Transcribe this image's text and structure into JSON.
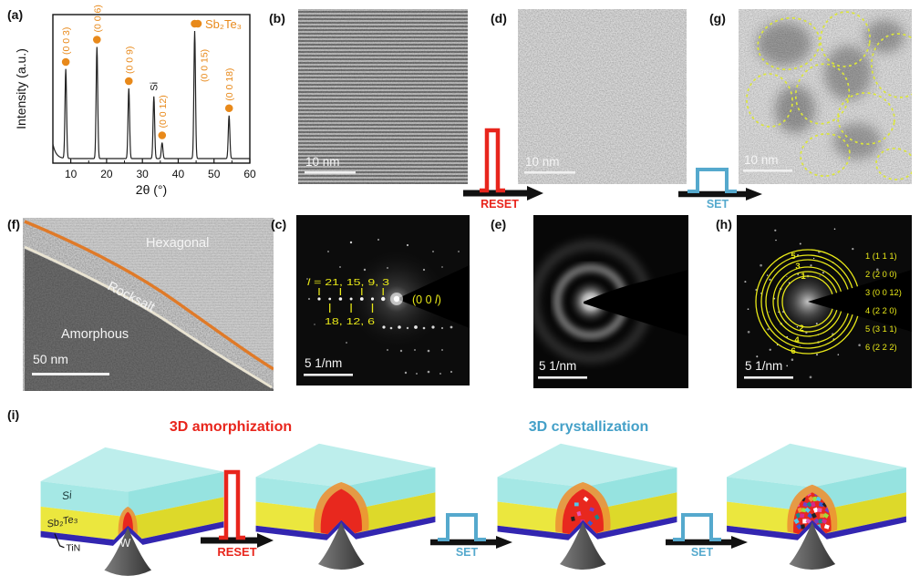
{
  "panels": {
    "a": {
      "label": "(a)"
    },
    "b": {
      "label": "(b)",
      "scale_bar": "10 nm"
    },
    "c": {
      "label": "(c)",
      "scale_bar": "5 1/nm",
      "l_italic": "l",
      "l_values_top": " = 21, 15, 9, 3",
      "l_values_bottom": "18, 12, 6",
      "zone_prefix": "(0 0 ",
      "zone_l": "l",
      "zone_suffix": ")"
    },
    "d": {
      "label": "(d)",
      "scale_bar": "10 nm"
    },
    "e": {
      "label": "(e)",
      "scale_bar": "5 1/nm"
    },
    "f": {
      "label": "(f)",
      "scale_bar": "50 nm",
      "region_hexagonal": "Hexagonal",
      "region_rocksalt": "Rocksalt",
      "region_amorphous": "Amorphous"
    },
    "g": {
      "label": "(g)",
      "scale_bar": "10 nm"
    },
    "h": {
      "label": "(h)",
      "scale_bar": "5 1/nm",
      "ring_labels": [
        "1",
        "2",
        "3",
        "4",
        "5",
        "6"
      ],
      "legend": [
        "1 (1 1 1)",
        "2 (2 0 0)",
        "3 (0 0 12)",
        "4 (2 2 0)",
        "5 (3 1 1)",
        "6 (2 2 2)"
      ]
    },
    "i": {
      "label": "(i)",
      "title_amorphization": "3D amorphization",
      "title_crystallization": "3D crystallization",
      "layers": {
        "si": "Si",
        "sb2te3": "Sb₂Te₃",
        "tin": "TiN",
        "tip": "W"
      }
    }
  },
  "arrows": {
    "reset": "RESET",
    "set": "SET"
  },
  "colors": {
    "accent_orange": "#e8891a",
    "annotation_yellow": "#e8e818",
    "grain_boundary_yellow": "#dce63a",
    "reset_red": "#e8251c",
    "set_blue": "#55a9cd",
    "si_cyan": "#aeeae6",
    "sb2te3_yellow": "#e9e53c",
    "tin_blue": "#3326b0",
    "melt_red": "#e8281e",
    "melt_rim_orange": "#ec9134"
  },
  "chart_data": {
    "type": "line",
    "title": "",
    "xlabel": "2θ (°)",
    "ylabel": "Intensity (a.u.)",
    "xlim": [
      5,
      60
    ],
    "x_ticks": [
      10,
      20,
      30,
      40,
      50,
      60
    ],
    "grid": false,
    "legend_label": "Sb₂Te₃",
    "peaks": [
      {
        "two_theta": 8.6,
        "label": "(0 0 3)",
        "rel_intensity": 0.56
      },
      {
        "two_theta": 17.3,
        "label": "(0 0 6)",
        "rel_intensity": 0.7
      },
      {
        "two_theta": 26.2,
        "label": "(0 0 9)",
        "rel_intensity": 0.44
      },
      {
        "two_theta": 33.2,
        "label": "Si",
        "rel_intensity": 0.39,
        "substrate": true
      },
      {
        "two_theta": 35.5,
        "label": "(0 0 12)",
        "rel_intensity": 0.1
      },
      {
        "two_theta": 44.6,
        "label": "(0 0 15)",
        "rel_intensity": 0.8
      },
      {
        "two_theta": 54.2,
        "label": "(0 0 18)",
        "rel_intensity": 0.27
      }
    ]
  }
}
